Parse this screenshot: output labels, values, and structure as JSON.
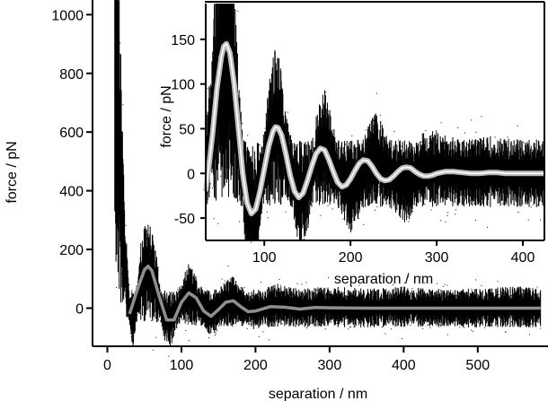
{
  "chart_data": [
    {
      "type": "scatter",
      "panel": "main",
      "xlabel": "separation / nm",
      "ylabel": "force / pN",
      "xlim": [
        -20,
        590
      ],
      "ylim": [
        -130,
        1050
      ],
      "xticks": [
        0,
        100,
        200,
        300,
        400,
        500
      ],
      "yticks": [
        0,
        200,
        400,
        600,
        800,
        1000
      ],
      "series": [
        {
          "role": "measured data (black noise band)",
          "color": "#000000",
          "x": [
            10,
            15,
            20,
            25,
            30,
            35,
            40,
            45,
            55,
            65,
            75,
            85,
            100,
            110,
            125,
            140,
            155,
            170,
            185,
            200,
            230,
            260,
            300,
            350,
            400,
            450,
            500,
            550,
            585
          ],
          "y": [
            1050,
            650,
            330,
            120,
            -10,
            -40,
            20,
            90,
            140,
            80,
            -20,
            -40,
            20,
            50,
            10,
            -20,
            10,
            25,
            0,
            -5,
            10,
            0,
            5,
            0,
            5,
            0,
            0,
            5,
            0
          ]
        },
        {
          "role": "fit (grey line)",
          "color": "#8f8f8f",
          "x": [
            30,
            40,
            50,
            55,
            60,
            70,
            80,
            90,
            100,
            110,
            120,
            130,
            140,
            150,
            160,
            170,
            180,
            190,
            200,
            220,
            240,
            260,
            280,
            300,
            350,
            400,
            450,
            500,
            550,
            585
          ],
          "y": [
            -20,
            60,
            130,
            143,
            128,
            40,
            -40,
            -40,
            20,
            52,
            35,
            -10,
            -28,
            -5,
            20,
            25,
            5,
            -12,
            -10,
            5,
            3,
            -3,
            2,
            1,
            0,
            0,
            0,
            0,
            0,
            0
          ]
        }
      ]
    },
    {
      "type": "scatter",
      "panel": "inset",
      "xlabel": "separation / nm",
      "ylabel": "force / pN",
      "xlim": [
        32,
        425
      ],
      "ylim": [
        -75,
        190
      ],
      "xticks": [
        100,
        200,
        300,
        400
      ],
      "yticks": [
        -50,
        0,
        50,
        100,
        150
      ],
      "series": [
        {
          "role": "measured data (black noise band)",
          "color": "#000000",
          "x": [
            32,
            40,
            50,
            56,
            62,
            70,
            80,
            90,
            100,
            110,
            115,
            125,
            140,
            150,
            160,
            170,
            185,
            200,
            215,
            228,
            245,
            265,
            285,
            300,
            330,
            360,
            400,
            425
          ],
          "y": [
            0,
            70,
            130,
            143,
            120,
            40,
            -40,
            -45,
            10,
            50,
            55,
            20,
            -25,
            -15,
            15,
            30,
            0,
            -15,
            0,
            18,
            0,
            -10,
            5,
            5,
            0,
            2,
            0,
            0
          ]
        },
        {
          "role": "fit (white line with grey outline)",
          "color": "#ffffff",
          "x": [
            32,
            36,
            40,
            45,
            50,
            53,
            56,
            60,
            65,
            70,
            75,
            80,
            85,
            90,
            95,
            100,
            105,
            110,
            113,
            116,
            120,
            125,
            130,
            135,
            140,
            145,
            150,
            155,
            160,
            165,
            170,
            175,
            180,
            185,
            190,
            195,
            200,
            205,
            210,
            215,
            220,
            225,
            230,
            235,
            240,
            245,
            250,
            255,
            260,
            265,
            270,
            275,
            280,
            285,
            290,
            295,
            300,
            310,
            320,
            330,
            340,
            350,
            360,
            370,
            380,
            390,
            400,
            410,
            425
          ],
          "y": [
            -20,
            10,
            45,
            95,
            130,
            142,
            145,
            135,
            100,
            50,
            0,
            -33,
            -45,
            -40,
            -20,
            5,
            30,
            47,
            52,
            51,
            43,
            22,
            -2,
            -20,
            -27,
            -22,
            -8,
            8,
            22,
            28,
            26,
            15,
            2,
            -10,
            -15,
            -13,
            -6,
            3,
            11,
            15,
            14,
            8,
            0,
            -6,
            -8,
            -7,
            -3,
            2,
            6,
            7,
            6,
            2,
            -1,
            -3,
            -3,
            -2,
            0,
            2,
            2,
            1,
            0,
            0,
            1,
            1,
            0,
            0,
            0,
            0,
            0
          ]
        }
      ]
    }
  ]
}
